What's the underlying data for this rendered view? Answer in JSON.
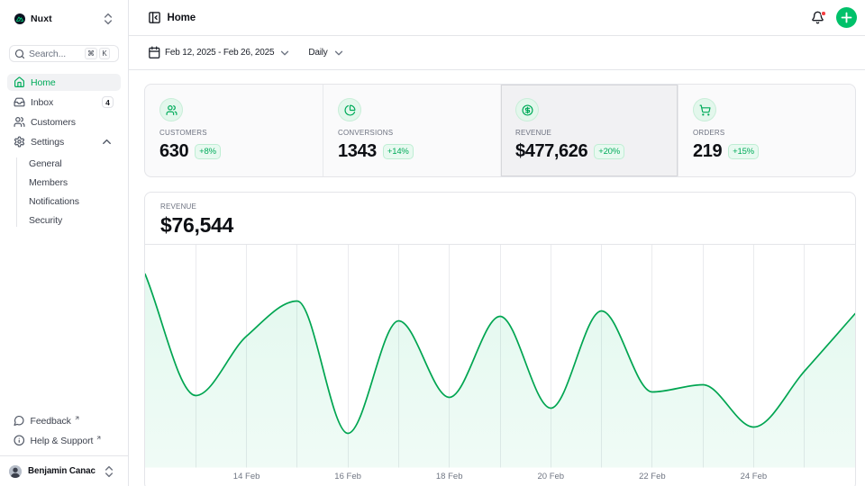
{
  "colors": {
    "primary": "#00c16a",
    "primary_text": "#00ab5a",
    "notification_dot": "#f43f42",
    "chart_line": "#00a551",
    "chart_area": "rgba(0,193,106,0.10)"
  },
  "sidebar": {
    "workspace": {
      "name": "Nuxt",
      "icon": "nuxt-logo"
    },
    "search": {
      "placeholder": "Search...",
      "kbd": [
        "⌘",
        "K"
      ]
    },
    "items": [
      {
        "label": "Home",
        "icon": "house",
        "active": true
      },
      {
        "label": "Inbox",
        "icon": "inbox",
        "badge": "4"
      },
      {
        "label": "Customers",
        "icon": "users"
      },
      {
        "label": "Settings",
        "icon": "settings",
        "expanded": true,
        "children": [
          {
            "label": "General"
          },
          {
            "label": "Members"
          },
          {
            "label": "Notifications"
          },
          {
            "label": "Security"
          }
        ]
      }
    ],
    "footer_links": [
      {
        "label": "Feedback",
        "icon": "message-circle",
        "external": true
      },
      {
        "label": "Help & Support",
        "icon": "info",
        "external": true
      }
    ],
    "user": {
      "name": "Benjamin Canac"
    }
  },
  "header": {
    "title": "Home",
    "has_notification": true
  },
  "toolbar": {
    "date_range": "Feb 12, 2025 - Feb 26, 2025",
    "period": "Daily"
  },
  "stats": [
    {
      "label": "CUSTOMERS",
      "icon": "users",
      "value": "630",
      "delta": "+8%"
    },
    {
      "label": "CONVERSIONS",
      "icon": "chart-pie",
      "value": "1343",
      "delta": "+14%"
    },
    {
      "label": "REVENUE",
      "icon": "circle-dollar-sign",
      "value": "$477,626",
      "delta": "+20%",
      "selected": true
    },
    {
      "label": "ORDERS",
      "icon": "shopping-cart",
      "value": "219",
      "delta": "+15%"
    }
  ],
  "chart_data": {
    "type": "area",
    "title": "REVENUE",
    "current_value": "$76,544",
    "x": [
      "Feb 12",
      "Feb 13",
      "Feb 14",
      "Feb 15",
      "Feb 16",
      "Feb 17",
      "Feb 18",
      "Feb 19",
      "Feb 20",
      "Feb 21",
      "Feb 22",
      "Feb 23",
      "Feb 24",
      "Feb 25",
      "Feb 26"
    ],
    "values": [
      86000,
      32000,
      58400,
      74000,
      15200,
      65200,
      31200,
      67200,
      26400,
      69600,
      33600,
      36800,
      18000,
      42800,
      68400
    ],
    "ylim": [
      0,
      98800
    ],
    "xticks": [
      {
        "index": 2,
        "label": "14 Feb"
      },
      {
        "index": 4,
        "label": "16 Feb"
      },
      {
        "index": 6,
        "label": "18 Feb"
      },
      {
        "index": 8,
        "label": "20 Feb"
      },
      {
        "index": 10,
        "label": "22 Feb"
      },
      {
        "index": 12,
        "label": "24 Feb"
      }
    ],
    "grid": "vertical-only",
    "legend": "none",
    "curve": "monotone-x"
  }
}
